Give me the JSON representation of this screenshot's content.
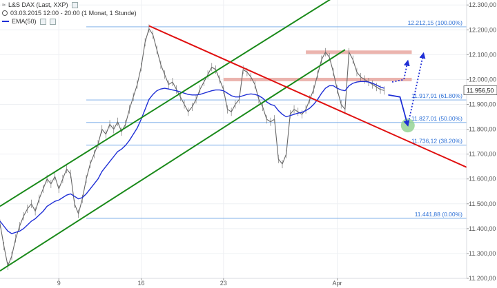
{
  "header": {
    "symbol": "L&S DAX (Last, XXP)",
    "period": "03.03.2015 12:00 - 20:00 (1 Monat, 1 Stunde)",
    "indicator": "EMA(50)",
    "indicator_color": "#1f2fd6"
  },
  "chart_data": {
    "type": "line",
    "title": "L&S DAX (Last, XXP)",
    "ylim": [
      11200,
      12320
    ],
    "y_ticks": [
      {
        "value": 12300,
        "label": "12.300,00"
      },
      {
        "value": 12200,
        "label": "12.200,00"
      },
      {
        "value": 12100,
        "label": "12.100,00"
      },
      {
        "value": 12000,
        "label": "12.000,00"
      },
      {
        "value": 11900,
        "label": "11.900,00"
      },
      {
        "value": 11800,
        "label": "11.800,00"
      },
      {
        "value": 11700,
        "label": "11.700,00"
      },
      {
        "value": 11600,
        "label": "11.600,00"
      },
      {
        "value": 11500,
        "label": "11.500,00"
      },
      {
        "value": 11400,
        "label": "11.400,00"
      },
      {
        "value": 11300,
        "label": "11.300,00"
      },
      {
        "value": 11200,
        "label": "11.200,00"
      }
    ],
    "x_ticks": [
      {
        "index": 15,
        "label": "9"
      },
      {
        "index": 36,
        "label": "16"
      },
      {
        "index": 57,
        "label": "23"
      },
      {
        "index": 86,
        "label": "Apr"
      }
    ],
    "x_count": 120,
    "current_price": {
      "value": 11956.5,
      "label": "11.956,50"
    },
    "fibonacci": [
      {
        "value": 12212.15,
        "label": "12.212,15 (100.00%)"
      },
      {
        "value": 11917.91,
        "label": "11.917,91 (61.80%)"
      },
      {
        "value": 11827.01,
        "label": "11.827,01 (50.00%)"
      },
      {
        "value": 11736.12,
        "label": "11.736,12 (38.20%)"
      },
      {
        "value": 11441.88,
        "label": "11.441,88 (0.00%)"
      }
    ],
    "resistance_zones": [
      {
        "x_from": 78,
        "x_to": 105,
        "y": 12110
      },
      {
        "x_from": 57,
        "x_to": 105,
        "y": 12000
      }
    ],
    "trendlines": [
      {
        "name": "channel-upper",
        "color": "#1a8a1a",
        "x1": 0,
        "y1": 11490,
        "x2": 85,
        "y2": 12330
      },
      {
        "name": "channel-lower",
        "color": "#1a8a1a",
        "x1": 0,
        "y1": 11230,
        "x2": 88,
        "y2": 12120
      },
      {
        "name": "downtrend",
        "color": "#e01010",
        "x1": 38,
        "y1": 12216,
        "x2": 120,
        "y2": 11640
      }
    ],
    "price": [
      11420,
      11330,
      11250,
      11290,
      11360,
      11410,
      11450,
      11480,
      11500,
      11470,
      11520,
      11560,
      11600,
      11580,
      11610,
      11560,
      11600,
      11640,
      11620,
      11500,
      11460,
      11520,
      11600,
      11660,
      11700,
      11740,
      11800,
      11780,
      11820,
      11800,
      11830,
      11790,
      11820,
      11880,
      11930,
      11980,
      12050,
      12150,
      12205,
      12180,
      12120,
      12060,
      12020,
      11980,
      11990,
      11960,
      11930,
      11900,
      11870,
      11890,
      11920,
      11960,
      11990,
      12020,
      12050,
      12040,
      12000,
      11960,
      11880,
      11870,
      11900,
      11920,
      12040,
      12030,
      12010,
      11980,
      11920,
      11890,
      11840,
      11830,
      11840,
      11680,
      11660,
      11700,
      11860,
      11880,
      11870,
      11860,
      11880,
      11920,
      11960,
      12020,
      12080,
      12110,
      12090,
      12030,
      11960,
      11900,
      11880,
      12110,
      12080,
      12030,
      12010,
      12000,
      11990,
      11980,
      11970,
      11960,
      11956
    ],
    "ema50": [
      11430,
      11410,
      11390,
      11380,
      11385,
      11390,
      11400,
      11415,
      11430,
      11440,
      11455,
      11470,
      11490,
      11500,
      11510,
      11515,
      11525,
      11535,
      11540,
      11530,
      11520,
      11525,
      11540,
      11560,
      11580,
      11600,
      11630,
      11650,
      11670,
      11690,
      11710,
      11720,
      11735,
      11755,
      11780,
      11805,
      11840,
      11880,
      11920,
      11940,
      11955,
      11962,
      11965,
      11962,
      11958,
      11955,
      11950,
      11945,
      11940,
      11938,
      11938,
      11940,
      11945,
      11950,
      11955,
      11958,
      11958,
      11955,
      11945,
      11935,
      11930,
      11930,
      11935,
      11940,
      11942,
      11940,
      11935,
      11925,
      11910,
      11900,
      11895,
      11875,
      11860,
      11850,
      11855,
      11860,
      11865,
      11868,
      11875,
      11885,
      11900,
      11920,
      11945,
      11965,
      11975,
      11975,
      11965,
      11958,
      11955,
      11975,
      11985,
      11990,
      11992,
      11992,
      11990,
      11985,
      11978,
      11970,
      11965
    ],
    "projections": [
      {
        "name": "down-arrow",
        "color": "#1f2fd6",
        "style": "solid",
        "points": [
          [
            99,
            11938
          ],
          [
            102,
            11930
          ],
          [
            104,
            11815
          ]
        ]
      },
      {
        "name": "up-arrow-short",
        "color": "#1f2fd6",
        "style": "dotted",
        "points": [
          [
            100,
            11990
          ],
          [
            103,
            12000
          ],
          [
            104,
            12075
          ]
        ]
      },
      {
        "name": "up-arrow-long",
        "color": "#1f2fd6",
        "style": "dotted",
        "points": [
          [
            104,
            11815
          ],
          [
            108,
            12105
          ]
        ]
      }
    ],
    "target_marker": {
      "x": 104,
      "y": 11815,
      "color": "#8fd18f"
    },
    "grid": true
  }
}
